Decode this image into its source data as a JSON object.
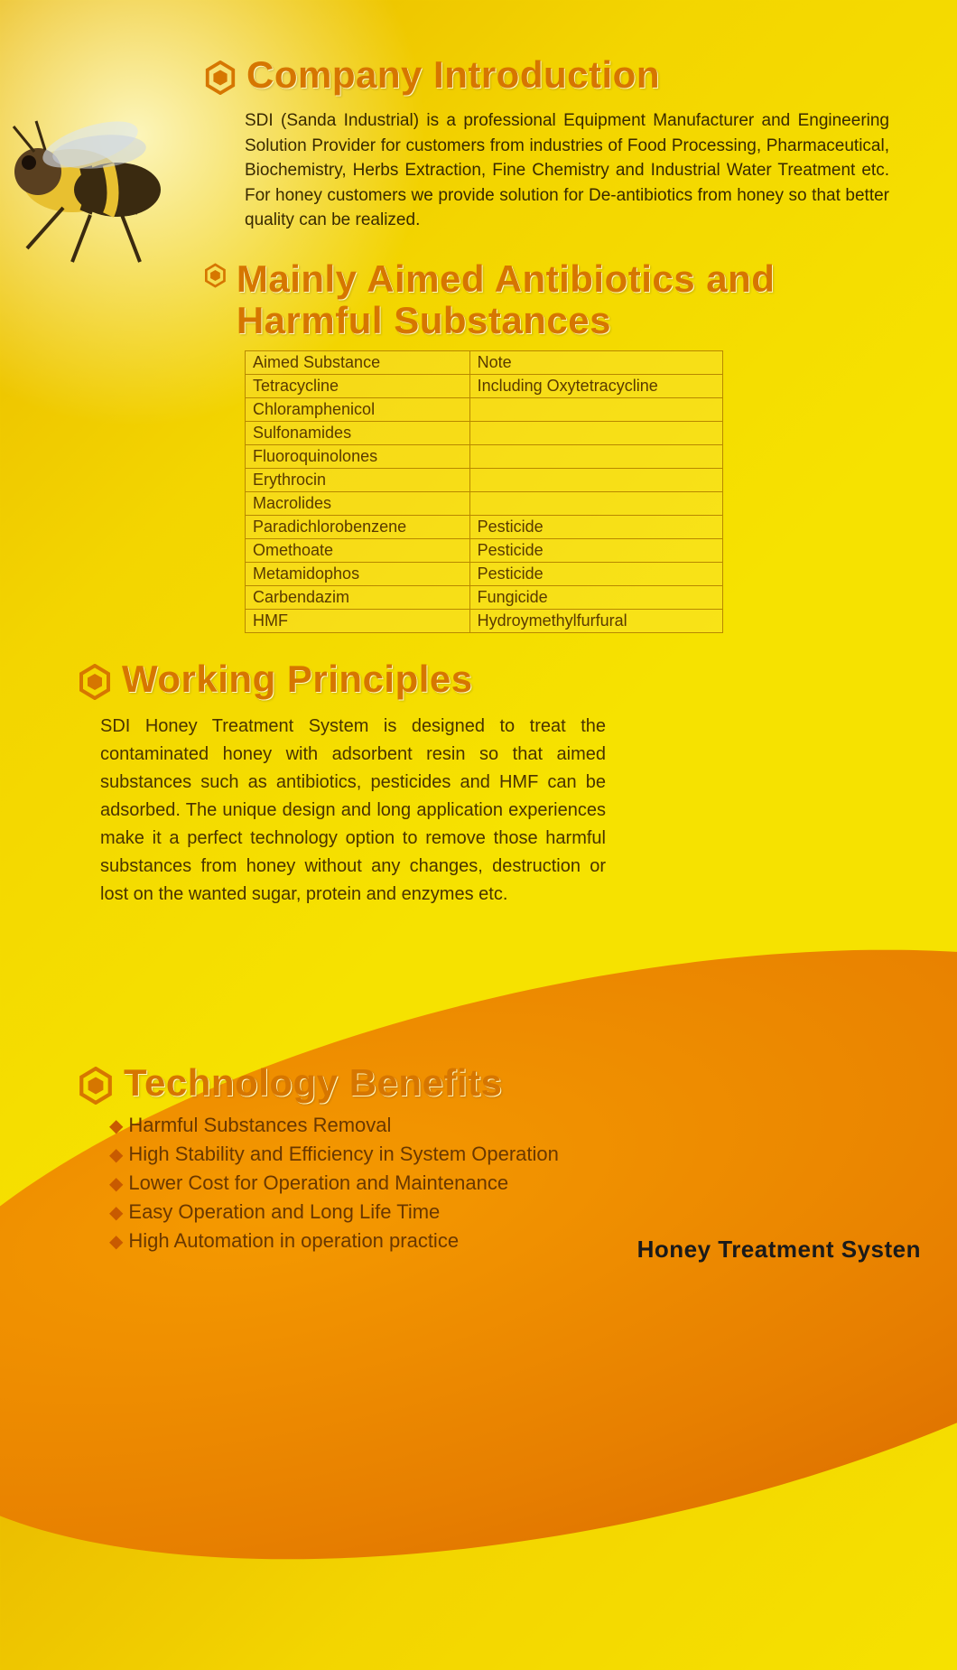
{
  "colors": {
    "heading": "#d67600",
    "heading_shadow": "#fff8c0",
    "body_text": "#3a2a00",
    "table_border": "#b88800",
    "bullet": "#c85a00",
    "footer": "#1a1a1a"
  },
  "sections": {
    "intro": {
      "title": "Company Introduction",
      "text": "SDI (Sanda Industrial) is a professional Equipment Manufacturer and Engineering Solution Provider for customers from industries of Food Processing, Pharmaceutical, Biochemistry, Herbs Extraction, Fine Chemistry and Industrial Water Treatment etc. For honey customers we provide solution for De-antibiotics from honey so that better quality can be realized."
    },
    "antibiotics": {
      "title": "Mainly Aimed Antibiotics and Harmful Substances",
      "columns": [
        "Aimed Substance",
        "Note"
      ],
      "rows": [
        [
          "Tetracycline",
          "Including Oxytetracycline"
        ],
        [
          "Chloramphenicol",
          ""
        ],
        [
          "Sulfonamides",
          ""
        ],
        [
          "Fluoroquinolones",
          ""
        ],
        [
          "Erythrocin",
          ""
        ],
        [
          "Macrolides",
          ""
        ],
        [
          "Paradichlorobenzene",
          "Pesticide"
        ],
        [
          "Omethoate",
          "Pesticide"
        ],
        [
          "Metamidophos",
          "Pesticide"
        ],
        [
          "Carbendazim",
          "Fungicide"
        ],
        [
          "HMF",
          "Hydroymethylfurfural"
        ]
      ]
    },
    "principles": {
      "title": "Working Principles",
      "text": "SDI Honey Treatment System is designed to treat the contaminated honey with adsorbent resin so that aimed substances such as antibiotics, pesticides and HMF can be adsorbed. The unique design and long application experiences make it a perfect technology option to remove those harmful substances from honey without any changes, destruction or lost on the wanted sugar, protein and enzymes etc."
    },
    "benefits": {
      "title": "Technology Benefits",
      "items": [
        "Harmful Substances Removal",
        "High Stability and Efficiency in System Operation",
        "Lower Cost for Operation and Maintenance",
        "Easy Operation and Long Life Time",
        "High Automation in operation practice"
      ]
    }
  },
  "footer": "Honey Treatment Systen"
}
